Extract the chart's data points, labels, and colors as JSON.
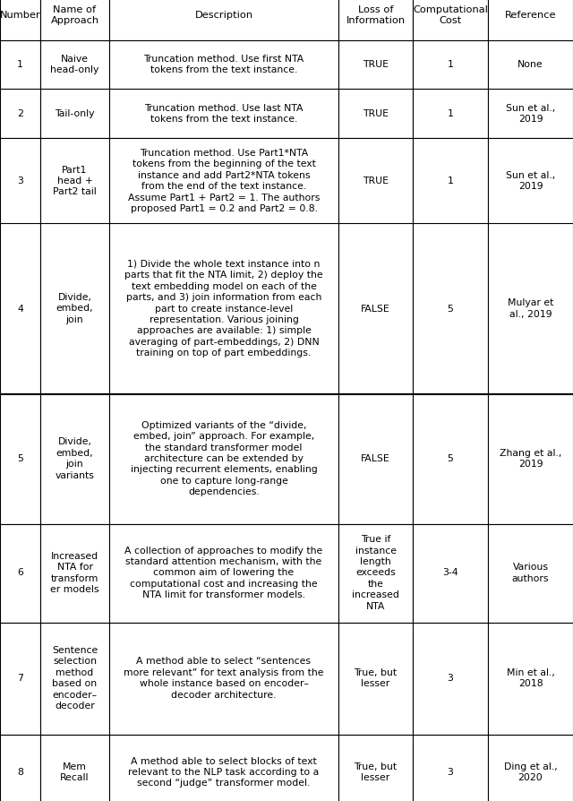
{
  "col_widths_inches": [
    0.45,
    0.77,
    2.56,
    0.83,
    0.84,
    0.95
  ],
  "row_heights_inches": [
    0.55,
    0.55,
    0.55,
    0.95,
    1.9,
    1.45,
    1.1,
    1.25,
    0.85
  ],
  "columns": [
    "Number",
    "Name of\nApproach",
    "Description",
    "Loss of\nInformation",
    "Computational\nCost",
    "Reference"
  ],
  "rows": [
    [
      "1",
      "Naive\nhead-only",
      "Truncation method. Use first NTA\ntokens from the text instance.",
      "TRUE",
      "1",
      "None"
    ],
    [
      "2",
      "Tail-only",
      "Truncation method. Use last NTA\ntokens from the text instance.",
      "TRUE",
      "1",
      "Sun et al.,\n2019"
    ],
    [
      "3",
      "Part1\nhead +\nPart2 tail",
      "Truncation method. Use Part1*NTA\ntokens from the beginning of the text\ninstance and add Part2*NTA tokens\nfrom the end of the text instance.\nAssume Part1 + Part2 = 1. The authors\nproposed Part1 = 0.2 and Part2 = 0.8.",
      "TRUE",
      "1",
      "Sun et al.,\n2019"
    ],
    [
      "4",
      "Divide,\nembed,\njoin",
      "1) Divide the whole text instance into n\nparts that fit the NTA limit, 2) deploy the\ntext embedding model on each of the\nparts, and 3) join information from each\npart to create instance-level\nrepresentation. Various joining\napproaches are available: 1) simple\naveraging of part-embeddings, 2) DNN\ntraining on top of part embeddings.",
      "FALSE",
      "5",
      "Mulyar et\nal., 2019"
    ],
    [
      "5",
      "Divide,\nembed,\njoin\nvariants",
      "Optimized variants of the “divide,\nembed, join” approach. For example,\nthe standard transformer model\narchitecture can be extended by\ninjecting recurrent elements, enabling\none to capture long-range\ndependencies.",
      "FALSE",
      "5",
      "Zhang et al.,\n2019"
    ],
    [
      "6",
      "Increased\nNTA for\ntransform\ner models",
      "A collection of approaches to modify the\nstandard attention mechanism, with the\ncommon aim of lowering the\ncomputational cost and increasing the\nNTA limit for transformer models.",
      "True if\ninstance\nlength\nexceeds\nthe\nincreased\nNTA",
      "3-4",
      "Various\nauthors"
    ],
    [
      "7",
      "Sentence\nselection\nmethod\nbased on\nencoder–\ndecoder",
      "A method able to select “sentences\nmore relevant” for text analysis from the\nwhole instance based on encoder–\ndecoder architecture.",
      "True, but\nlesser",
      "3",
      "Min et al.,\n2018"
    ],
    [
      "8",
      "Mem\nRecall",
      "A method able to select blocks of text\nrelevant to the NLP task according to a\nsecond “judge” transformer model.",
      "True, but\nlesser",
      "3",
      "Ding et al.,\n2020"
    ]
  ],
  "font_size": 7.8,
  "header_font_size": 8.2,
  "line_color": "#000000",
  "line_width": 0.8,
  "text_color": "#000000",
  "bg_color": "#ffffff"
}
